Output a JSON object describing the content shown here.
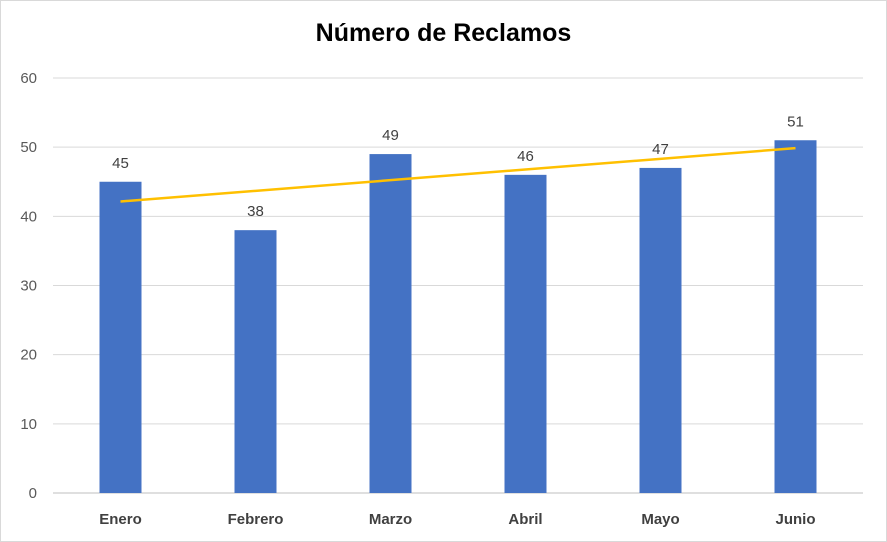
{
  "chart_data": {
    "type": "bar",
    "title": "Número de Reclamos",
    "categories": [
      "Enero",
      "Febrero",
      "Marzo",
      "Abril",
      "Mayo",
      "Junio"
    ],
    "values": [
      45,
      38,
      49,
      46,
      47,
      51
    ],
    "ylim": [
      0,
      60
    ],
    "yticks": [
      0,
      10,
      20,
      30,
      40,
      50,
      60
    ],
    "grid": true,
    "data_labels": true,
    "trendline": {
      "type": "linear",
      "color": "#FFC000"
    },
    "bar_color": "#4472C4"
  }
}
